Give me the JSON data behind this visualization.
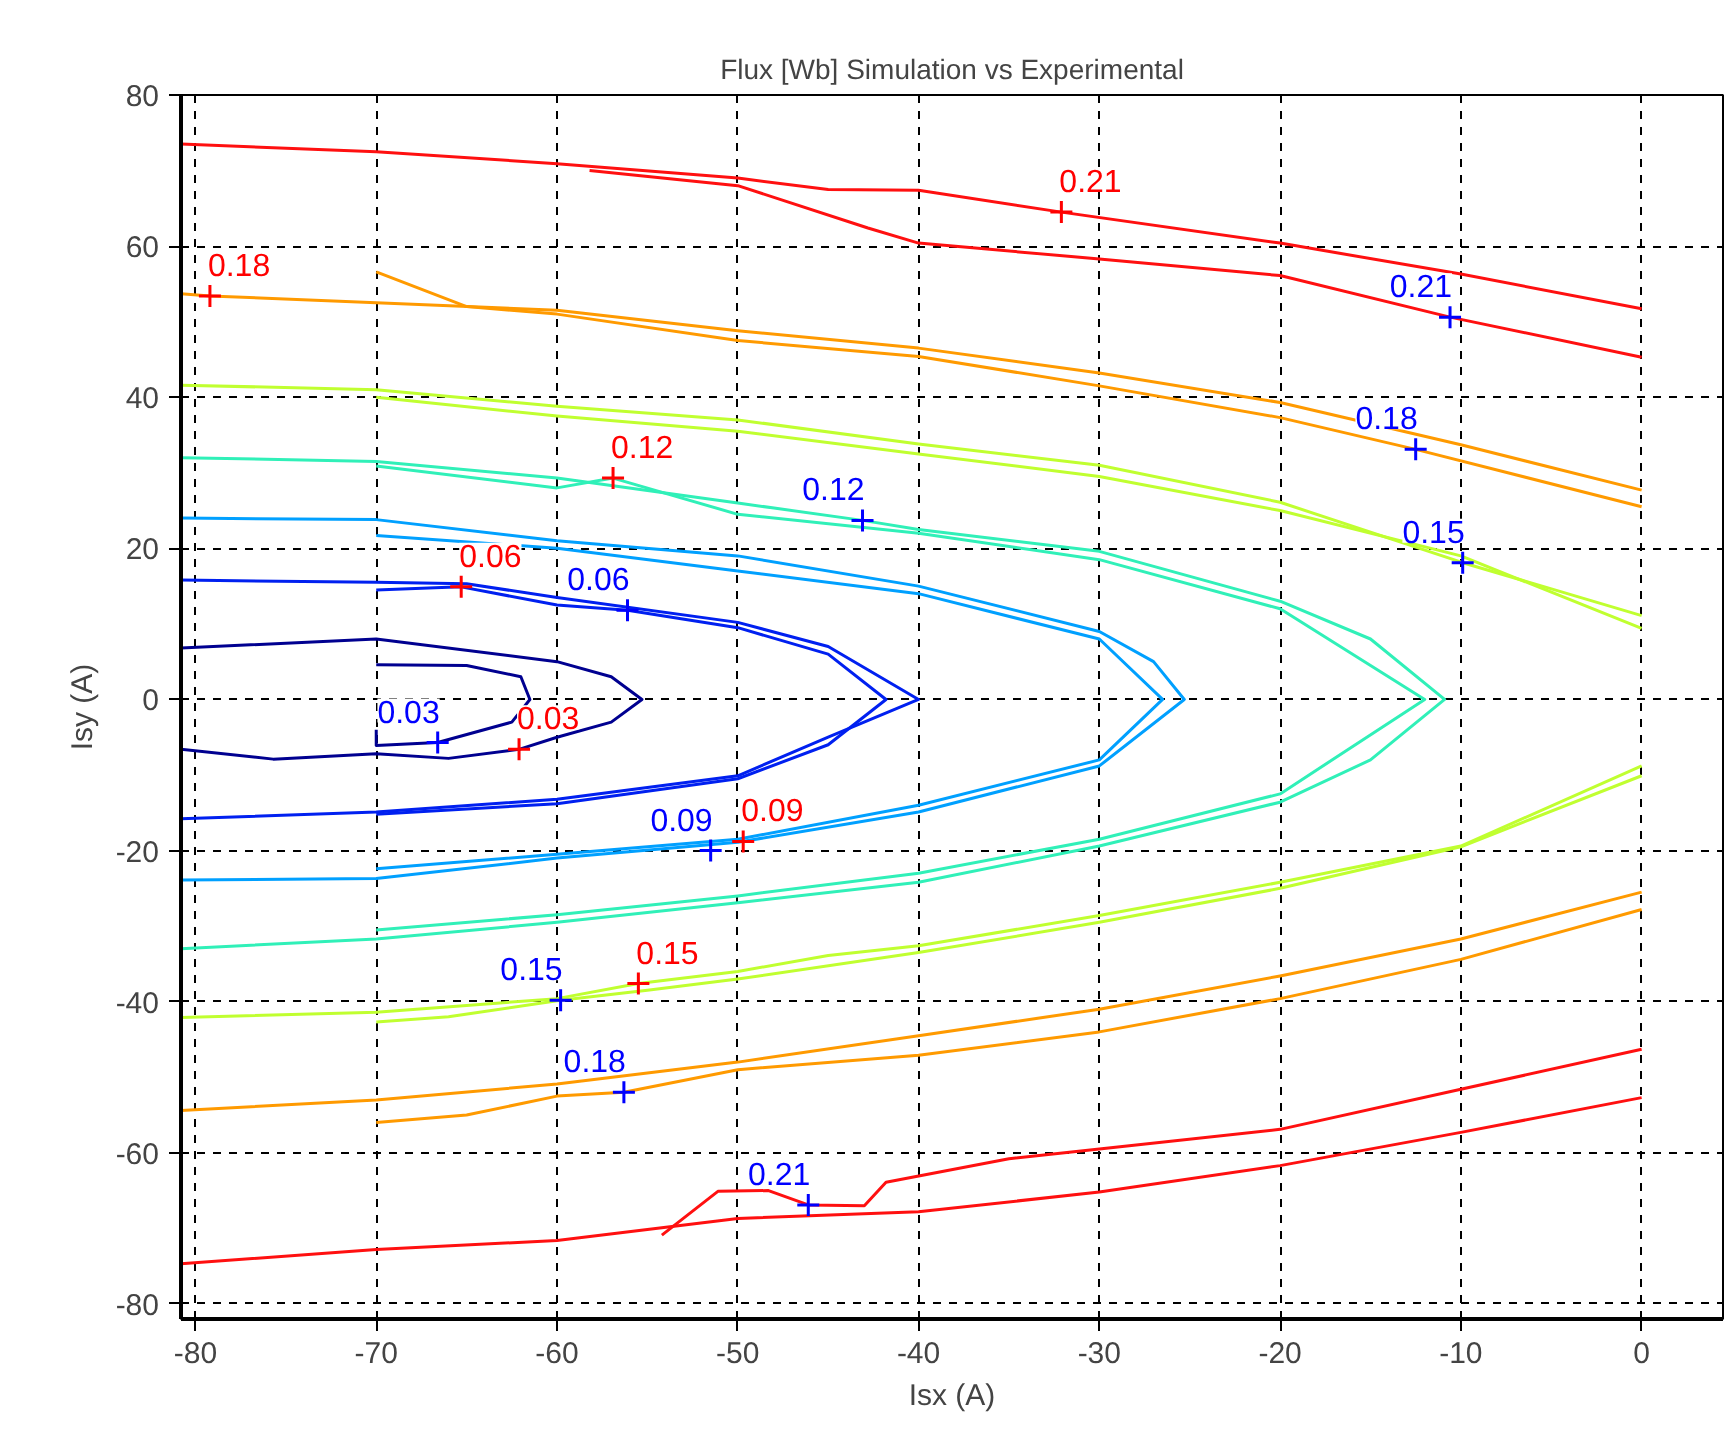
{
  "chart_data": {
    "type": "line",
    "title": "Flux [Wb] Simulation vs Experimental",
    "xlabel": "Isx (A)",
    "ylabel": "Isy (A)",
    "xlim": [
      -80.8,
      4.5
    ],
    "ylim": [
      -82,
      80
    ],
    "xticks": [
      -80,
      -70,
      -60,
      -50,
      -40,
      -30,
      -20,
      -10,
      0
    ],
    "yticks": [
      -80,
      -60,
      -40,
      -20,
      0,
      20,
      40,
      60,
      80
    ],
    "grid": true,
    "line_style": "solid",
    "series": [
      {
        "color": "#000090",
        "x": [
          -80.8,
          -70,
          -60,
          -57,
          -55.3,
          -57,
          -60,
          -62.1,
          -66,
          -70,
          -75.7,
          -80.8
        ],
        "values": [
          6.8,
          8,
          5,
          3,
          0,
          -3,
          -5,
          -6.6,
          -7.8,
          -7.2,
          -7.9,
          -6.6
        ]
      },
      {
        "color": "#000090",
        "x": [
          -70,
          -65,
          -62,
          -61.5,
          -62.5,
          -66.6,
          -70,
          -70
        ],
        "values": [
          4.6,
          4.5,
          3,
          0,
          -3,
          -5.7,
          -6.1,
          -4
        ]
      },
      {
        "color": "#0020f0",
        "x": [
          -80.8,
          -70,
          -65,
          -60,
          -50,
          -45,
          -40,
          -45,
          -50,
          -60,
          -70,
          -80.8
        ],
        "values": [
          15.8,
          15.5,
          15.3,
          13.5,
          10.2,
          7,
          0,
          -5,
          -10.1,
          -13.2,
          -14.9,
          -15.8
        ]
      },
      {
        "color": "#0020f0",
        "x": [
          -70,
          -65.3,
          -60,
          -56.1,
          -50,
          -45,
          -41.8,
          -45,
          -50,
          -60,
          -70
        ],
        "values": [
          14.5,
          14.9,
          12.5,
          11.8,
          9.5,
          6,
          0,
          -6,
          -10.5,
          -13.8,
          -15.2
        ]
      },
      {
        "color": "#00a0ff",
        "x": [
          -80.8,
          -70,
          -60,
          -50,
          -40,
          -30,
          -27,
          -25.3,
          -30,
          -40,
          -50,
          -60,
          -70,
          -80.8
        ],
        "values": [
          24,
          23.8,
          21,
          19,
          15,
          9,
          5,
          0,
          -8.8,
          -14.9,
          -18.9,
          -21,
          -23.7,
          -23.9
        ]
      },
      {
        "color": "#00a0ff",
        "x": [
          -70,
          -60,
          -50,
          -40,
          -30,
          -26.5,
          -30,
          -40,
          -50,
          -60,
          -70
        ],
        "values": [
          21.7,
          20,
          17,
          14,
          8,
          0,
          -8,
          -14,
          -18.5,
          -20.5,
          -22.4
        ]
      },
      {
        "color": "#30f0b8",
        "x": [
          -80.8,
          -70,
          -60,
          -50,
          -43.1,
          -40,
          -30,
          -20,
          -15,
          -10.9,
          -15,
          -20,
          -30,
          -40,
          -50,
          -60,
          -70,
          -80.8
        ],
        "values": [
          32,
          31.5,
          29.3,
          26,
          23.7,
          22.5,
          19.6,
          13,
          8,
          0,
          -8,
          -13.6,
          -19.4,
          -24.2,
          -26.9,
          -29.5,
          -31.7,
          -33
        ]
      },
      {
        "color": "#30f0b8",
        "x": [
          -70,
          -60,
          -56.9,
          -50,
          -40,
          -30,
          -20,
          -12,
          -20,
          -30,
          -40,
          -50,
          -60,
          -70
        ],
        "values": [
          30.9,
          28,
          29.3,
          24.5,
          22,
          18.5,
          12,
          0,
          -12.5,
          -18.5,
          -23,
          -26,
          -28.5,
          -30.5
        ]
      },
      {
        "color": "#c0ff30",
        "x": [
          -80.8,
          -70,
          -60,
          -50,
          -40,
          -30,
          -20,
          -9.9,
          0
        ],
        "values": [
          41.6,
          41,
          38.8,
          37,
          33.8,
          31,
          26.1,
          18.1,
          11.1
        ]
      },
      {
        "color": "#c0ff30",
        "x": [
          0,
          -10,
          -20,
          -30,
          -40,
          -45,
          -50,
          -55.5,
          -60,
          -70,
          -80.8
        ],
        "values": [
          -8.8,
          -19.4,
          -24.2,
          -28.6,
          -32.6,
          -33.9,
          -36,
          -37.6,
          -39.6,
          -41.4,
          -42.1
        ]
      },
      {
        "color": "#c0ff30",
        "x": [
          -70,
          -60,
          -50,
          -40,
          -30,
          -20,
          -10,
          0
        ],
        "values": [
          40,
          37.5,
          35.5,
          32.5,
          29.5,
          25,
          19,
          9.4
        ]
      },
      {
        "color": "#c0ff30",
        "x": [
          0,
          -10,
          -20,
          -30,
          -40,
          -50,
          -55,
          -59.8,
          -66,
          -70
        ],
        "values": [
          -10.1,
          -19.5,
          -25,
          -29.5,
          -33.5,
          -37,
          -38.5,
          -39.8,
          -42,
          -42.7
        ]
      },
      {
        "color": "#ff9a00",
        "x": [
          -80.8,
          -79.2,
          -70,
          -60,
          -50,
          -40,
          -30,
          -20,
          -10,
          0
        ],
        "values": [
          53.7,
          53.4,
          52.5,
          51.5,
          48.8,
          46.5,
          43.2,
          39.3,
          33.7,
          27.7
        ]
      },
      {
        "color": "#ff9a00",
        "x": [
          0,
          -10,
          -20,
          -30,
          -40,
          -50,
          -60,
          -70,
          -80.8
        ],
        "values": [
          -25.5,
          -31.7,
          -36.6,
          -41,
          -44.5,
          -48,
          -50.9,
          -53,
          -54.4
        ]
      },
      {
        "color": "#ff9a00",
        "x": [
          -70,
          -65,
          -60,
          -50,
          -40,
          -30,
          -20,
          -12.5,
          0
        ],
        "values": [
          56.6,
          52,
          51,
          47.5,
          45.4,
          41.5,
          37.3,
          33.1,
          25.5
        ]
      },
      {
        "color": "#ff9a00",
        "x": [
          0,
          -10,
          -20,
          -30,
          -40,
          -50,
          -56.3,
          -60,
          -65,
          -70
        ],
        "values": [
          -27.8,
          -34.4,
          -39.6,
          -44,
          -47.1,
          -49,
          -52,
          -52.5,
          -55,
          -56
        ]
      },
      {
        "color": "#ff1010",
        "x": [
          -80.8,
          -70,
          -60,
          -50,
          -45,
          -40,
          -32.1,
          -20,
          -10,
          0
        ],
        "values": [
          73.5,
          72.5,
          70.9,
          69,
          67.5,
          67.4,
          64.5,
          60.4,
          56.3,
          51.7
        ]
      },
      {
        "color": "#ff1010",
        "x": [
          0,
          -10,
          -20,
          -30,
          -40,
          -50,
          -60,
          -70,
          -80.8
        ],
        "values": [
          -52.7,
          -57.3,
          -61.7,
          -65.2,
          -67.8,
          -68.7,
          -71.6,
          -72.8,
          -74.7
        ]
      },
      {
        "color": "#ff1010",
        "x": [
          -58.2,
          -50,
          -42.8,
          -40,
          -30,
          -20,
          -10.6,
          0
        ],
        "values": [
          70,
          68,
          62.4,
          60.4,
          58.3,
          56.1,
          50.6,
          45.3
        ]
      },
      {
        "color": "#ff1010",
        "x": [
          0,
          -10,
          -20,
          -30,
          -35,
          -41.8,
          -43,
          -46.1,
          -48.3,
          -51.1,
          -54.2
        ],
        "values": [
          -46.3,
          -51.6,
          -56.9,
          -59.5,
          -60.8,
          -63.9,
          -67,
          -66.9,
          -65,
          -65.1,
          -70.9
        ]
      },
      {
        "type": "scatter",
        "marker": "cross",
        "color": "#0000ff",
        "x": [
          -66.6,
          -56.1,
          -51.5,
          -43.1,
          -59.8,
          -9.9,
          -56.3,
          -12.5,
          -46.1,
          -10.6
        ],
        "values": [
          -5.7,
          11.8,
          -20,
          23.7,
          -39.8,
          18.1,
          -52,
          33.1,
          -66.9,
          50.6
        ]
      },
      {
        "type": "scatter",
        "marker": "cross",
        "color": "#ff0000",
        "x": [
          -62.1,
          -65.3,
          -49.7,
          -56.9,
          -55.5,
          -79.2,
          -32.1
        ],
        "values": [
          -6.6,
          14.9,
          -18.8,
          29.3,
          -37.6,
          53.4,
          64.5
        ]
      }
    ],
    "annotations": [
      {
        "text": "0.03",
        "x": -66.6,
        "y": -5.7
      },
      {
        "text": "0.06",
        "x": -56.1,
        "y": 11.8
      },
      {
        "text": "0.09",
        "x": -51.5,
        "y": -20
      },
      {
        "text": "0.12",
        "x": -43.1,
        "y": 23.7
      },
      {
        "text": "0.15",
        "x": -59.8,
        "y": -39.8
      },
      {
        "text": "0.15",
        "x": -9.9,
        "y": 18.1
      },
      {
        "text": "0.18",
        "x": -56.3,
        "y": -52
      },
      {
        "text": "0.18",
        "x": -12.5,
        "y": 33.1
      },
      {
        "text": "0.21",
        "x": -46.1,
        "y": -66.9
      },
      {
        "text": "0.21",
        "x": -10.6,
        "y": 50.6
      },
      {
        "text": "0.03",
        "x": -62.1,
        "y": -6.6
      },
      {
        "text": "0.06",
        "x": -65.3,
        "y": 14.9
      },
      {
        "text": "0.09",
        "x": -49.7,
        "y": -18.8
      },
      {
        "text": "0.12",
        "x": -56.9,
        "y": 29.3
      },
      {
        "text": "0.15",
        "x": -55.5,
        "y": -37.6
      },
      {
        "text": "0.18",
        "x": -79.2,
        "y": 53.4
      },
      {
        "text": "0.21",
        "x": -32.1,
        "y": 64.5
      }
    ]
  }
}
